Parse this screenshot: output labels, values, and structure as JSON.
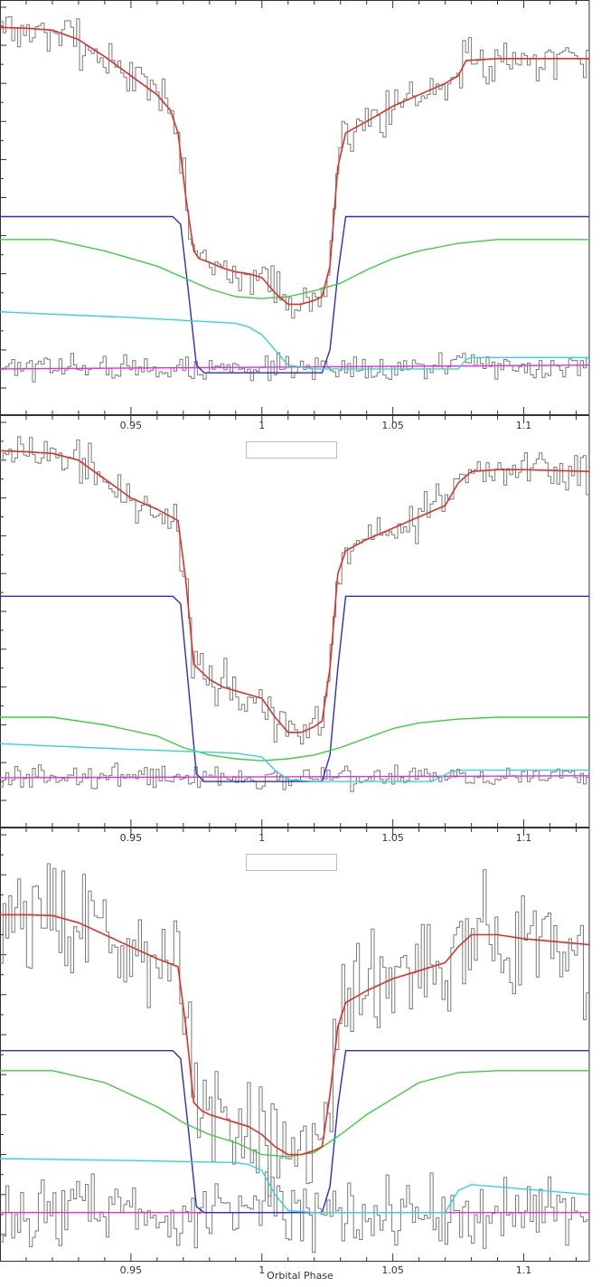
{
  "chart_data": {
    "type": "line",
    "xlabel": "Orbital Phase",
    "xlim": [
      0.9,
      1.125
    ],
    "x_ticks": [
      {
        "v": 0.95,
        "label": "0.95"
      },
      {
        "v": 1.0,
        "label": "1"
      },
      {
        "v": 1.05,
        "label": "1.05"
      },
      {
        "v": 1.1,
        "label": "1.1"
      }
    ],
    "ylim": [
      0,
      1
    ],
    "colors": {
      "data": "#7a7a7a",
      "total_model": "#e0302c",
      "white_dwarf": "#2b2bd6",
      "disc": "#3ccf3c",
      "bright_spot": "#33d6d6",
      "secondary": "#e033e0",
      "frame": "#333333"
    },
    "panels": [
      {
        "legend_box": "",
        "model_points": [
          [
            0.9,
            0.947
          ],
          [
            0.91,
            0.945
          ],
          [
            0.92,
            0.94
          ],
          [
            0.93,
            0.915
          ],
          [
            0.94,
            0.87
          ],
          [
            0.95,
            0.82
          ],
          [
            0.96,
            0.77
          ],
          [
            0.965,
            0.73
          ],
          [
            0.968,
            0.67
          ],
          [
            0.971,
            0.5
          ],
          [
            0.974,
            0.36
          ],
          [
            0.976,
            0.34
          ],
          [
            0.98,
            0.33
          ],
          [
            0.985,
            0.315
          ],
          [
            0.99,
            0.305
          ],
          [
            0.995,
            0.3
          ],
          [
            1.0,
            0.29
          ],
          [
            1.005,
            0.25
          ],
          [
            1.01,
            0.22
          ],
          [
            1.015,
            0.22
          ],
          [
            1.02,
            0.23
          ],
          [
            1.023,
            0.24
          ],
          [
            1.026,
            0.32
          ],
          [
            1.029,
            0.58
          ],
          [
            1.032,
            0.67
          ],
          [
            1.04,
            0.7
          ],
          [
            1.05,
            0.74
          ],
          [
            1.06,
            0.77
          ],
          [
            1.07,
            0.8
          ],
          [
            1.075,
            0.82
          ],
          [
            1.078,
            0.86
          ],
          [
            1.09,
            0.865
          ],
          [
            1.1,
            0.865
          ],
          [
            1.125,
            0.865
          ]
        ],
        "wd_points": [
          [
            0.9,
            0.45
          ],
          [
            0.966,
            0.45
          ],
          [
            0.969,
            0.43
          ],
          [
            0.972,
            0.25
          ],
          [
            0.975,
            0.06
          ],
          [
            0.978,
            0.04
          ],
          [
            1.023,
            0.04
          ],
          [
            1.026,
            0.1
          ],
          [
            1.029,
            0.3
          ],
          [
            1.032,
            0.45
          ],
          [
            1.125,
            0.45
          ]
        ],
        "disc_points": [
          [
            0.9,
            0.39
          ],
          [
            0.92,
            0.39
          ],
          [
            0.94,
            0.36
          ],
          [
            0.96,
            0.32
          ],
          [
            0.97,
            0.29
          ],
          [
            0.98,
            0.26
          ],
          [
            0.99,
            0.24
          ],
          [
            1.0,
            0.235
          ],
          [
            1.01,
            0.24
          ],
          [
            1.02,
            0.255
          ],
          [
            1.03,
            0.275
          ],
          [
            1.04,
            0.31
          ],
          [
            1.05,
            0.34
          ],
          [
            1.06,
            0.36
          ],
          [
            1.075,
            0.38
          ],
          [
            1.09,
            0.39
          ],
          [
            1.125,
            0.39
          ]
        ],
        "spot_points": [
          [
            0.9,
            0.2
          ],
          [
            0.95,
            0.185
          ],
          [
            0.99,
            0.17
          ],
          [
            0.995,
            0.16
          ],
          [
            1.0,
            0.14
          ],
          [
            1.005,
            0.1
          ],
          [
            1.01,
            0.06
          ],
          [
            1.02,
            0.05
          ],
          [
            1.075,
            0.05
          ],
          [
            1.078,
            0.075
          ],
          [
            1.08,
            0.08
          ],
          [
            1.125,
            0.08
          ]
        ],
        "secondary_points": [
          [
            0.9,
            0.05
          ],
          [
            1.125,
            0.06
          ]
        ],
        "data_seed": 7,
        "noise": 0.03
      },
      {
        "legend_box": "",
        "model_points": [
          [
            0.9,
            0.925
          ],
          [
            0.91,
            0.922
          ],
          [
            0.92,
            0.918
          ],
          [
            0.93,
            0.9
          ],
          [
            0.94,
            0.85
          ],
          [
            0.95,
            0.8
          ],
          [
            0.96,
            0.77
          ],
          [
            0.968,
            0.74
          ],
          [
            0.971,
            0.58
          ],
          [
            0.974,
            0.36
          ],
          [
            0.977,
            0.34
          ],
          [
            0.98,
            0.32
          ],
          [
            0.985,
            0.3
          ],
          [
            0.99,
            0.29
          ],
          [
            0.995,
            0.28
          ],
          [
            1.0,
            0.27
          ],
          [
            1.005,
            0.22
          ],
          [
            1.01,
            0.18
          ],
          [
            1.015,
            0.18
          ],
          [
            1.02,
            0.195
          ],
          [
            1.023,
            0.21
          ],
          [
            1.026,
            0.35
          ],
          [
            1.029,
            0.6
          ],
          [
            1.032,
            0.66
          ],
          [
            1.04,
            0.69
          ],
          [
            1.05,
            0.72
          ],
          [
            1.06,
            0.75
          ],
          [
            1.07,
            0.78
          ],
          [
            1.075,
            0.84
          ],
          [
            1.08,
            0.87
          ],
          [
            1.09,
            0.875
          ],
          [
            1.1,
            0.875
          ],
          [
            1.125,
            0.87
          ]
        ],
        "wd_points": [
          [
            0.9,
            0.54
          ],
          [
            0.966,
            0.54
          ],
          [
            0.969,
            0.52
          ],
          [
            0.972,
            0.3
          ],
          [
            0.975,
            0.07
          ],
          [
            0.978,
            0.05
          ],
          [
            1.023,
            0.05
          ],
          [
            1.026,
            0.12
          ],
          [
            1.029,
            0.35
          ],
          [
            1.032,
            0.54
          ],
          [
            1.125,
            0.54
          ]
        ],
        "disc_points": [
          [
            0.9,
            0.22
          ],
          [
            0.92,
            0.22
          ],
          [
            0.94,
            0.2
          ],
          [
            0.96,
            0.17
          ],
          [
            0.97,
            0.14
          ],
          [
            0.98,
            0.12
          ],
          [
            0.99,
            0.11
          ],
          [
            1.0,
            0.105
          ],
          [
            1.01,
            0.11
          ],
          [
            1.02,
            0.12
          ],
          [
            1.03,
            0.14
          ],
          [
            1.04,
            0.165
          ],
          [
            1.05,
            0.19
          ],
          [
            1.06,
            0.205
          ],
          [
            1.075,
            0.215
          ],
          [
            1.09,
            0.22
          ],
          [
            1.125,
            0.22
          ]
        ],
        "spot_points": [
          [
            0.9,
            0.15
          ],
          [
            0.95,
            0.135
          ],
          [
            0.99,
            0.125
          ],
          [
            0.995,
            0.12
          ],
          [
            1.0,
            0.115
          ],
          [
            1.005,
            0.08
          ],
          [
            1.01,
            0.055
          ],
          [
            1.02,
            0.05
          ],
          [
            1.065,
            0.05
          ],
          [
            1.072,
            0.075
          ],
          [
            1.076,
            0.08
          ],
          [
            1.125,
            0.08
          ]
        ],
        "secondary_points": [
          [
            0.9,
            0.06
          ],
          [
            1.125,
            0.065
          ]
        ],
        "data_seed": 19,
        "noise": 0.03
      },
      {
        "legend_box": "",
        "model_points": [
          [
            0.9,
            0.8
          ],
          [
            0.91,
            0.8
          ],
          [
            0.92,
            0.798
          ],
          [
            0.93,
            0.78
          ],
          [
            0.94,
            0.75
          ],
          [
            0.95,
            0.72
          ],
          [
            0.96,
            0.69
          ],
          [
            0.968,
            0.67
          ],
          [
            0.971,
            0.52
          ],
          [
            0.974,
            0.33
          ],
          [
            0.977,
            0.31
          ],
          [
            0.98,
            0.3
          ],
          [
            0.985,
            0.29
          ],
          [
            0.99,
            0.28
          ],
          [
            0.995,
            0.27
          ],
          [
            1.0,
            0.25
          ],
          [
            1.005,
            0.22
          ],
          [
            1.01,
            0.2
          ],
          [
            1.015,
            0.2
          ],
          [
            1.02,
            0.21
          ],
          [
            1.023,
            0.22
          ],
          [
            1.026,
            0.35
          ],
          [
            1.029,
            0.52
          ],
          [
            1.032,
            0.58
          ],
          [
            1.04,
            0.61
          ],
          [
            1.05,
            0.64
          ],
          [
            1.06,
            0.66
          ],
          [
            1.07,
            0.68
          ],
          [
            1.075,
            0.72
          ],
          [
            1.08,
            0.75
          ],
          [
            1.09,
            0.75
          ],
          [
            1.1,
            0.74
          ],
          [
            1.125,
            0.725
          ]
        ],
        "wd_points": [
          [
            0.9,
            0.46
          ],
          [
            0.966,
            0.46
          ],
          [
            0.969,
            0.44
          ],
          [
            0.972,
            0.26
          ],
          [
            0.975,
            0.07
          ],
          [
            0.978,
            0.055
          ],
          [
            1.023,
            0.055
          ],
          [
            1.026,
            0.12
          ],
          [
            1.029,
            0.32
          ],
          [
            1.032,
            0.46
          ],
          [
            1.125,
            0.46
          ]
        ],
        "disc_points": [
          [
            0.9,
            0.41
          ],
          [
            0.92,
            0.41
          ],
          [
            0.94,
            0.38
          ],
          [
            0.96,
            0.32
          ],
          [
            0.97,
            0.28
          ],
          [
            0.98,
            0.25
          ],
          [
            0.99,
            0.23
          ],
          [
            1.0,
            0.2
          ],
          [
            1.01,
            0.195
          ],
          [
            1.02,
            0.205
          ],
          [
            1.03,
            0.25
          ],
          [
            1.04,
            0.3
          ],
          [
            1.05,
            0.34
          ],
          [
            1.06,
            0.38
          ],
          [
            1.075,
            0.405
          ],
          [
            1.09,
            0.41
          ],
          [
            1.125,
            0.41
          ]
        ],
        "spot_points": [
          [
            0.9,
            0.19
          ],
          [
            0.95,
            0.185
          ],
          [
            0.99,
            0.18
          ],
          [
            0.995,
            0.175
          ],
          [
            1.0,
            0.16
          ],
          [
            1.005,
            0.1
          ],
          [
            1.01,
            0.06
          ],
          [
            1.02,
            0.055
          ],
          [
            1.07,
            0.055
          ],
          [
            1.075,
            0.11
          ],
          [
            1.08,
            0.125
          ],
          [
            1.125,
            0.1
          ]
        ],
        "secondary_points": [
          [
            0.9,
            0.055
          ],
          [
            1.125,
            0.055
          ]
        ],
        "data_seed": 43,
        "noise": 0.075
      }
    ]
  }
}
